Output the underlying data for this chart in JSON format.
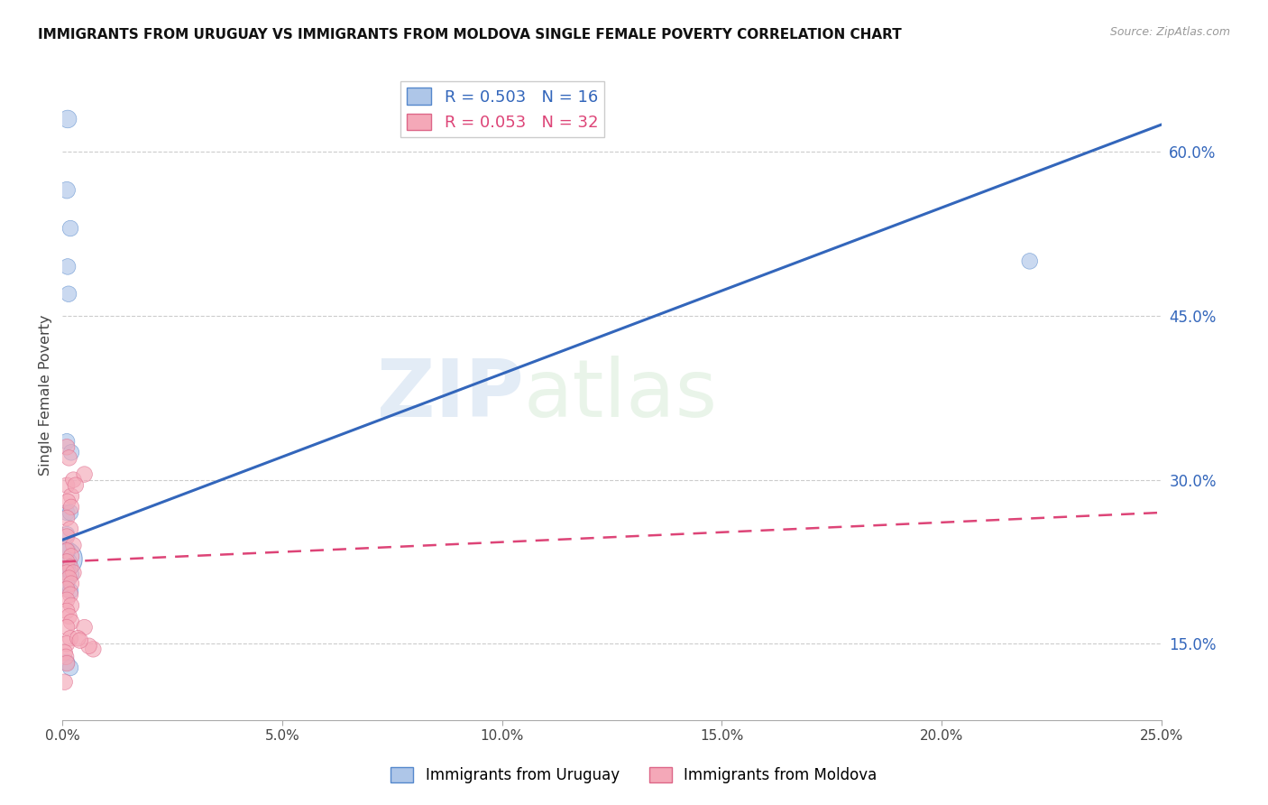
{
  "title": "IMMIGRANTS FROM URUGUAY VS IMMIGRANTS FROM MOLDOVA SINGLE FEMALE POVERTY CORRELATION CHART",
  "source": "Source: ZipAtlas.com",
  "ylabel": "Single Female Poverty",
  "xmin": 0.0,
  "xmax": 0.25,
  "ymin": 0.08,
  "ymax": 0.675,
  "yticks": [
    0.15,
    0.3,
    0.45,
    0.6
  ],
  "ytick_labels": [
    "15.0%",
    "30.0%",
    "45.0%",
    "60.0%"
  ],
  "xticks": [
    0.0,
    0.05,
    0.1,
    0.15,
    0.2,
    0.25
  ],
  "xtick_labels": [
    "0.0%",
    "5.0%",
    "10.0%",
    "15.0%",
    "20.0%",
    "25.0%"
  ],
  "legend_r_values": [
    "0.503",
    "0.053"
  ],
  "legend_n_values": [
    "16",
    "32"
  ],
  "watermark_zip": "ZIP",
  "watermark_atlas": "atlas",
  "uruguay_color": "#aec6e8",
  "uruguay_edge_color": "#5588cc",
  "moldova_color": "#f4a8b8",
  "moldova_edge_color": "#dd6688",
  "line_uruguay_color": "#3366bb",
  "line_moldova_color": "#dd4477",
  "line_uruguay": [
    [
      0.0,
      0.245
    ],
    [
      0.25,
      0.625
    ]
  ],
  "line_moldova": [
    [
      0.0,
      0.225
    ],
    [
      0.25,
      0.27
    ]
  ],
  "uruguay_points": [
    [
      0.0012,
      0.63
    ],
    [
      0.001,
      0.565
    ],
    [
      0.0018,
      0.53
    ],
    [
      0.0012,
      0.495
    ],
    [
      0.0014,
      0.47
    ],
    [
      0.001,
      0.335
    ],
    [
      0.002,
      0.325
    ],
    [
      0.001,
      0.27
    ],
    [
      0.0018,
      0.27
    ],
    [
      0.001,
      0.25
    ],
    [
      0.0012,
      0.235
    ],
    [
      0.0015,
      0.225
    ],
    [
      0.0012,
      0.218
    ],
    [
      0.002,
      0.213
    ],
    [
      0.001,
      0.205
    ],
    [
      0.0018,
      0.198
    ],
    [
      0.001,
      0.133
    ],
    [
      0.0018,
      0.128
    ],
    [
      0.22,
      0.5
    ]
  ],
  "moldova_points": [
    [
      0.001,
      0.33
    ],
    [
      0.0015,
      0.32
    ],
    [
      0.001,
      0.295
    ],
    [
      0.002,
      0.285
    ],
    [
      0.0025,
      0.3
    ],
    [
      0.005,
      0.305
    ],
    [
      0.003,
      0.295
    ],
    [
      0.0012,
      0.28
    ],
    [
      0.002,
      0.275
    ],
    [
      0.001,
      0.265
    ],
    [
      0.0018,
      0.255
    ],
    [
      0.001,
      0.248
    ],
    [
      0.0025,
      0.24
    ],
    [
      0.001,
      0.235
    ],
    [
      0.002,
      0.23
    ],
    [
      0.001,
      0.225
    ],
    [
      0.0018,
      0.22
    ],
    [
      0.001,
      0.215
    ],
    [
      0.0025,
      0.215
    ],
    [
      0.0015,
      0.21
    ],
    [
      0.002,
      0.205
    ],
    [
      0.001,
      0.2
    ],
    [
      0.0018,
      0.195
    ],
    [
      0.001,
      0.19
    ],
    [
      0.002,
      0.185
    ],
    [
      0.001,
      0.18
    ],
    [
      0.0015,
      0.175
    ],
    [
      0.002,
      0.17
    ],
    [
      0.001,
      0.165
    ],
    [
      0.0018,
      0.155
    ],
    [
      0.001,
      0.15
    ],
    [
      0.005,
      0.165
    ],
    [
      0.007,
      0.145
    ],
    [
      0.006,
      0.148
    ],
    [
      0.0035,
      0.155
    ],
    [
      0.004,
      0.153
    ],
    [
      0.0005,
      0.142
    ],
    [
      0.0008,
      0.138
    ],
    [
      0.001,
      0.132
    ],
    [
      0.0005,
      0.115
    ]
  ],
  "uruguay_sizes": [
    200,
    180,
    160,
    160,
    160,
    160,
    160,
    160,
    160,
    160,
    160,
    160,
    160,
    160,
    160,
    160,
    160,
    160,
    160
  ],
  "moldova_sizes": [
    160,
    160,
    160,
    160,
    160,
    160,
    160,
    160,
    160,
    160,
    160,
    160,
    160,
    160,
    160,
    160,
    160,
    160,
    160,
    160,
    160,
    160,
    160,
    160,
    160,
    160,
    160,
    160,
    160,
    160,
    160,
    160,
    160,
    160,
    160,
    160,
    160,
    160,
    160,
    160
  ],
  "large_uruguay_point": [
    0.0004,
    0.228
  ],
  "large_uruguay_size": 800
}
